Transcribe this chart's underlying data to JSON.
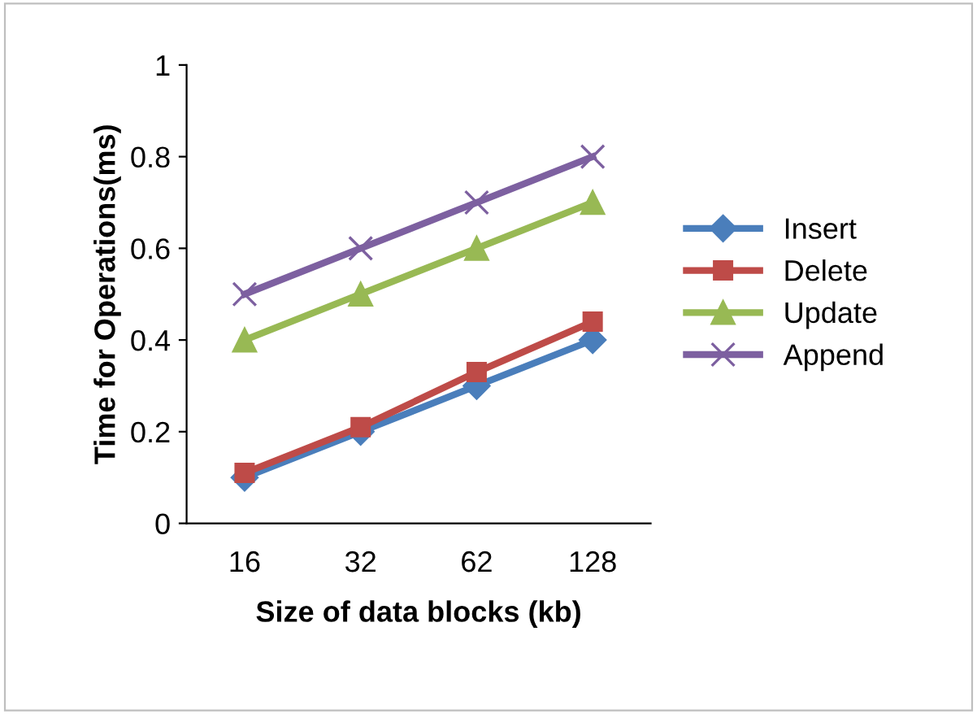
{
  "chart_data": {
    "type": "line",
    "xlabel": "Size of data blocks (kb)",
    "ylabel": "Time for Operations(ms)",
    "categories": [
      "16",
      "32",
      "62",
      "128"
    ],
    "series": [
      {
        "name": "Insert",
        "color": "#4a7ebb",
        "marker": "diamond",
        "values": [
          0.1,
          0.2,
          0.3,
          0.4
        ]
      },
      {
        "name": "Delete",
        "color": "#be4b48",
        "marker": "square",
        "values": [
          0.11,
          0.21,
          0.33,
          0.44
        ]
      },
      {
        "name": "Update",
        "color": "#98b954",
        "marker": "triangle",
        "values": [
          0.4,
          0.5,
          0.6,
          0.7
        ]
      },
      {
        "name": "Append",
        "color": "#7d60a0",
        "marker": "cross",
        "values": [
          0.5,
          0.6,
          0.7,
          0.8
        ]
      }
    ],
    "ylim": [
      0,
      1
    ],
    "yticks": [
      0,
      0.2,
      0.4,
      0.6,
      0.8,
      1
    ],
    "grid": false,
    "legend": "right",
    "line_style": "solid"
  }
}
